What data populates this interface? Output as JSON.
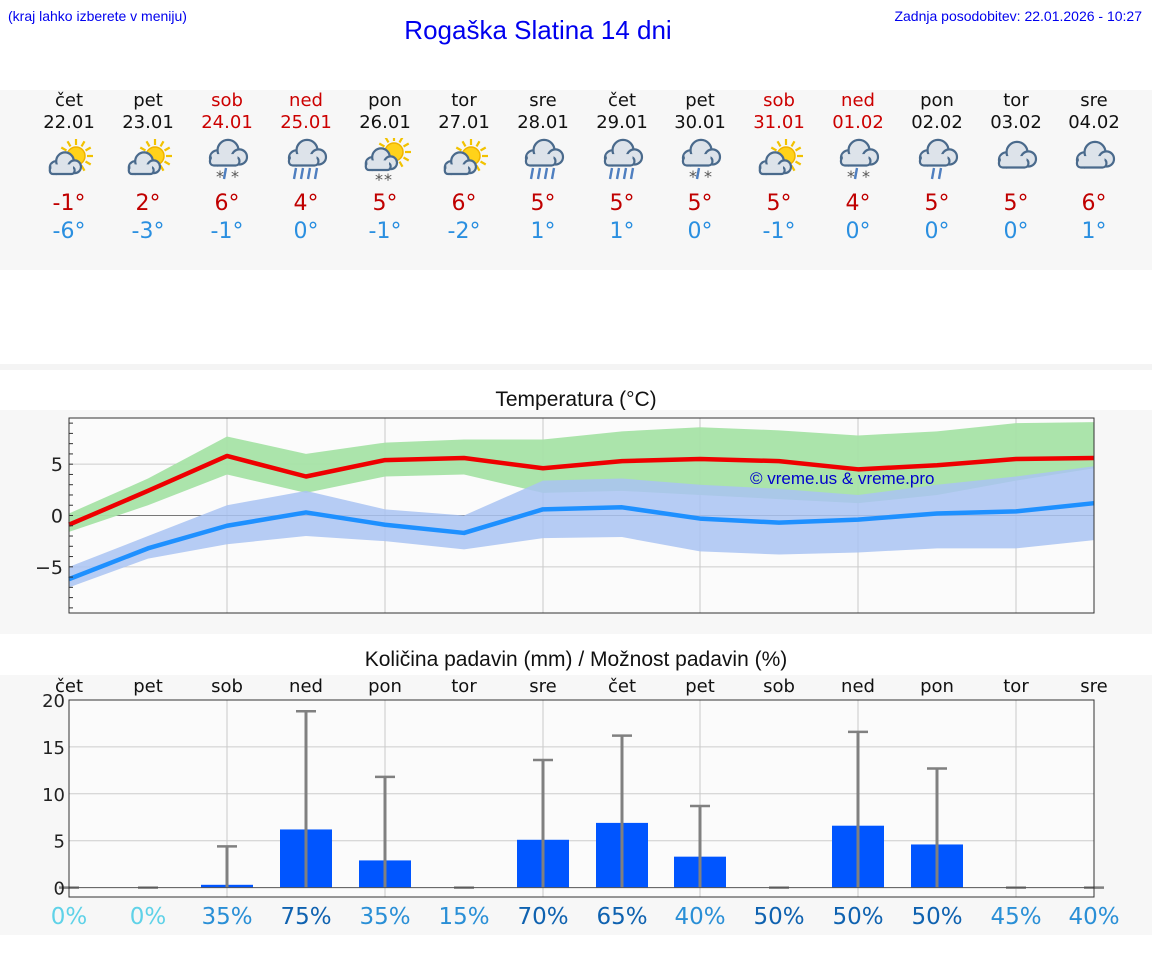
{
  "header": {
    "hint": "(kraj lahko izberete v meniju)",
    "title": "Rogaška Slatina 14 dni",
    "updated": "Zadnja posodobitev: 22.01.2026 - 10:27"
  },
  "days": [
    {
      "name": "čet",
      "date": "22.01",
      "icon": "sun-cloud-icon",
      "max": "-1°",
      "min": "-6°",
      "weekend": false
    },
    {
      "name": "pet",
      "date": "23.01",
      "icon": "sun-cloud-icon",
      "max": "2°",
      "min": "-3°",
      "weekend": false
    },
    {
      "name": "sob",
      "date": "24.01",
      "icon": "cloud-snow-icon",
      "max": "6°",
      "min": "-1°",
      "weekend": true
    },
    {
      "name": "ned",
      "date": "25.01",
      "icon": "cloud-rain-icon",
      "max": "4°",
      "min": "0°",
      "weekend": true
    },
    {
      "name": "pon",
      "date": "26.01",
      "icon": "sun-cloud-snow-icon",
      "max": "5°",
      "min": "-1°",
      "weekend": false
    },
    {
      "name": "tor",
      "date": "27.01",
      "icon": "sun-cloud-icon",
      "max": "6°",
      "min": "-2°",
      "weekend": false
    },
    {
      "name": "sre",
      "date": "28.01",
      "icon": "cloud-rain-icon",
      "max": "5°",
      "min": "1°",
      "weekend": false
    },
    {
      "name": "čet",
      "date": "29.01",
      "icon": "cloud-rain-icon",
      "max": "5°",
      "min": "1°",
      "weekend": false
    },
    {
      "name": "pet",
      "date": "30.01",
      "icon": "cloud-snow-icon",
      "max": "5°",
      "min": "0°",
      "weekend": false
    },
    {
      "name": "sob",
      "date": "31.01",
      "icon": "sun-cloud-icon",
      "max": "5°",
      "min": "-1°",
      "weekend": true
    },
    {
      "name": "ned",
      "date": "01.02",
      "icon": "cloud-snow-icon",
      "max": "4°",
      "min": "0°",
      "weekend": true
    },
    {
      "name": "pon",
      "date": "02.02",
      "icon": "cloud-light-rain-icon",
      "max": "5°",
      "min": "0°",
      "weekend": false
    },
    {
      "name": "tor",
      "date": "03.02",
      "icon": "cloud-icon",
      "max": "5°",
      "min": "0°",
      "weekend": false
    },
    {
      "name": "sre",
      "date": "04.02",
      "icon": "cloud-icon",
      "max": "6°",
      "min": "1°",
      "weekend": false
    }
  ],
  "colors": {
    "weekend": "#cc0000",
    "tmax": "#c00000",
    "tmin": "#2a8fe0",
    "max_line": "#ee0000",
    "min_line": "#1e90ff",
    "max_band": "#a6e3a6",
    "min_band": "#a9c3f2",
    "bar": "#0055ff",
    "errbar": "#808080"
  },
  "chart_data": [
    {
      "type": "line",
      "title": "Temperatura (°C)",
      "x": [
        0,
        1,
        2,
        3,
        4,
        5,
        6,
        7,
        8,
        9,
        10,
        11,
        12,
        13
      ],
      "ylim": [
        -9.5,
        9.5
      ],
      "yticks": [
        5,
        0,
        -5
      ],
      "ytick_labels": [
        "5",
        "0",
        "−5"
      ],
      "watermark": "© vreme.us & vreme.pro",
      "series": [
        {
          "name": "max",
          "values": [
            -0.9,
            2.4,
            5.8,
            3.8,
            5.4,
            5.6,
            4.6,
            5.3,
            5.5,
            5.3,
            4.5,
            4.9,
            5.5,
            5.6
          ]
        },
        {
          "name": "min",
          "values": [
            -6.2,
            -3.2,
            -1.0,
            0.3,
            -0.9,
            -1.7,
            0.6,
            0.8,
            -0.3,
            -0.7,
            -0.4,
            0.2,
            0.4,
            1.2
          ]
        }
      ],
      "bands": [
        {
          "name": "max_range",
          "lower": [
            -1.6,
            1.0,
            4.0,
            2.2,
            3.8,
            4.0,
            2.2,
            2.4,
            2.0,
            1.6,
            1.2,
            2.0,
            3.4,
            4.6
          ],
          "upper": [
            0.2,
            3.6,
            7.7,
            6.0,
            7.1,
            7.4,
            7.4,
            8.2,
            8.6,
            8.3,
            7.8,
            8.2,
            9.0,
            9.1
          ]
        },
        {
          "name": "min_range",
          "lower": [
            -7.0,
            -4.2,
            -2.8,
            -2.0,
            -2.5,
            -3.3,
            -2.2,
            -2.1,
            -3.5,
            -3.8,
            -3.6,
            -3.2,
            -3.2,
            -2.4
          ],
          "upper": [
            -5.0,
            -2.0,
            1.0,
            2.4,
            0.6,
            0.0,
            3.4,
            3.6,
            3.0,
            2.6,
            2.0,
            3.0,
            3.8,
            4.8
          ]
        }
      ]
    },
    {
      "type": "bar",
      "title": "Količina padavin (mm) / Možnost padavin (%)",
      "categories": [
        "čet",
        "pet",
        "sob",
        "ned",
        "pon",
        "tor",
        "sre",
        "čet",
        "pet",
        "sob",
        "ned",
        "pon",
        "tor",
        "sre"
      ],
      "values": [
        0,
        0,
        0.3,
        6.2,
        2.9,
        0,
        5.1,
        6.9,
        3.3,
        0,
        6.6,
        4.6,
        0,
        0
      ],
      "error_high": [
        0,
        0,
        4.4,
        18.8,
        11.8,
        0,
        13.6,
        16.2,
        8.7,
        0,
        16.6,
        12.7,
        0,
        0
      ],
      "ylim": [
        -1,
        20
      ],
      "yticks": [
        20,
        15,
        10,
        5,
        0
      ],
      "ytick_labels": [
        "20",
        "15",
        "10",
        "5",
        "0"
      ],
      "probability": [
        "0%",
        "0%",
        "35%",
        "75%",
        "35%",
        "15%",
        "70%",
        "65%",
        "40%",
        "50%",
        "50%",
        "50%",
        "45%",
        "40%"
      ],
      "probability_colors": [
        "#5fd2e8",
        "#5fd2e8",
        "#2a8fd6",
        "#0f62b0",
        "#2a8fd6",
        "#2a8fd6",
        "#0f62b0",
        "#0f62b0",
        "#2a8fd6",
        "#0f62b0",
        "#0f62b0",
        "#0f62b0",
        "#2a8fd6",
        "#2a8fd6"
      ]
    }
  ]
}
